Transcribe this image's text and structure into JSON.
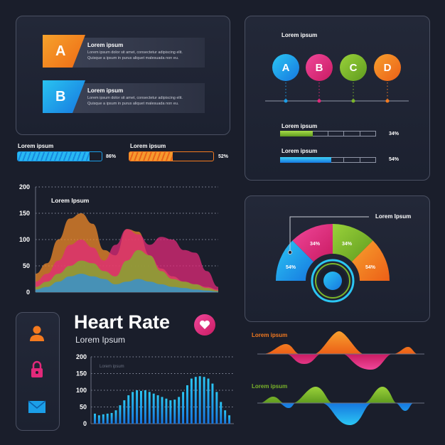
{
  "colors": {
    "orange": "#f47a1f",
    "blue": "#1b9ee8",
    "pink": "#e2297a",
    "green": "#7bb52a",
    "bg": "#1a1e2b"
  },
  "ab_panel": {
    "rows": [
      {
        "letter": "A",
        "title": "Lorem ipsum",
        "line1": "Lorem ipsum dolor sit amet, consectetur adipiscing elit.",
        "line2": "Quisque a ipsum in purus aliquet malesuada non eu."
      },
      {
        "letter": "B",
        "title": "Lorem ipsum",
        "line1": "Lorem ipsum dolor sit amet, consectetur adipiscing elit.",
        "line2": "Quisque a ipsum in purus aliquet malesuada non eu."
      }
    ]
  },
  "progress": [
    {
      "label": "Lorem ipsum",
      "value_text": "86%",
      "value": 0.86
    },
    {
      "label": "Lorem ipsum",
      "value_text": "52%",
      "value": 0.52
    }
  ],
  "timeline": {
    "title": "Lorem ipsum",
    "steps": [
      "A",
      "B",
      "C",
      "D"
    ],
    "bars": [
      {
        "label": "Lorem ipsum",
        "value_text": "34%",
        "value": 0.34
      },
      {
        "label": "Lorem ipsum",
        "value_text": "54%",
        "value": 0.54
      }
    ]
  },
  "area_chart": {
    "title": "Lorem Ipsum"
  },
  "gauge": {
    "title": "Lorem Ipsum",
    "segments": [
      "54%",
      "34%",
      "34%",
      "54%"
    ]
  },
  "heart": {
    "title": "Heart Rate",
    "subtitle": "Lorem Ipsum",
    "inner_label": "Lorem ipsum"
  },
  "waves": [
    {
      "label": "Lorem ipsum"
    },
    {
      "label": "Lorem ipsum"
    }
  ],
  "chart_data": [
    {
      "type": "area",
      "title": "Lorem Ipsum",
      "xlabel": "",
      "ylabel": "",
      "ylim": [
        0,
        200
      ],
      "yticks": [
        "200",
        "150",
        "100",
        "50",
        "0"
      ],
      "grid": true,
      "x": [
        0,
        1,
        2,
        3,
        4,
        5,
        6,
        7,
        8,
        9,
        10,
        11,
        12,
        13,
        14,
        15,
        16
      ],
      "series": [
        {
          "color": "#f08a2a",
          "values": [
            35,
            55,
            100,
            140,
            150,
            130,
            80,
            70,
            120,
            115,
            70,
            45,
            30,
            20,
            15,
            10,
            5
          ]
        },
        {
          "color": "#e2297a",
          "values": [
            20,
            35,
            60,
            90,
            100,
            85,
            60,
            90,
            120,
            110,
            90,
            105,
            100,
            80,
            75,
            40,
            10
          ]
        },
        {
          "color": "#7bb52a",
          "values": [
            10,
            20,
            35,
            50,
            60,
            55,
            40,
            30,
            60,
            80,
            70,
            40,
            25,
            20,
            15,
            8,
            3
          ]
        },
        {
          "color": "#2d8fe0",
          "values": [
            5,
            10,
            20,
            30,
            35,
            30,
            25,
            15,
            20,
            25,
            20,
            15,
            10,
            8,
            5,
            3,
            1
          ]
        }
      ]
    },
    {
      "type": "bar",
      "title": "",
      "ylim": [
        0,
        200
      ],
      "yticks": [
        "200",
        "150",
        "100",
        "50",
        "0"
      ],
      "grid": true,
      "values": [
        30,
        25,
        28,
        30,
        32,
        40,
        55,
        70,
        85,
        95,
        100,
        98,
        100,
        95,
        90,
        85,
        80,
        75,
        70,
        72,
        80,
        95,
        115,
        135,
        140,
        142,
        140,
        135,
        120,
        95,
        65,
        40,
        25
      ]
    }
  ]
}
